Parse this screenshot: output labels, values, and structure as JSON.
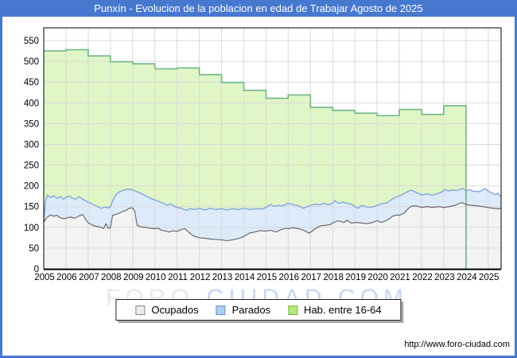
{
  "window": {
    "frame_color": "#4778cf",
    "title_text_color": "#ffffff"
  },
  "branding": {
    "url": "http://www.foro-ciudad.com",
    "watermark_gray": "FORO-",
    "watermark_blue": "CIUDAD.COM"
  },
  "chart_data": {
    "type": "area",
    "title": "Punxín - Evolucion de la poblacion en edad de Trabajar Agosto de 2025",
    "xlabel": "",
    "ylabel": "",
    "xlim": [
      2005,
      2025.58
    ],
    "ylim": [
      0,
      580
    ],
    "grid": true,
    "grid_color": "#d9d9d9",
    "legend_position": "bottom",
    "x_ticks": [
      2005,
      2006,
      2007,
      2008,
      2009,
      2010,
      2011,
      2012,
      2013,
      2014,
      2015,
      2016,
      2017,
      2018,
      2019,
      2020,
      2021,
      2022,
      2023,
      2024,
      2025
    ],
    "y_ticks": [
      0,
      50,
      100,
      150,
      200,
      250,
      300,
      350,
      400,
      450,
      500,
      550
    ],
    "legend": [
      {
        "label": "Ocupados",
        "swatch_fill": "#ececec",
        "swatch_border": "#888888"
      },
      {
        "label": "Parados",
        "swatch_fill": "#aecdf0",
        "swatch_border": "#7094c8"
      },
      {
        "label": "Hab. entre 16-64",
        "swatch_fill": "#b4e87f",
        "swatch_border": "#84b050"
      }
    ],
    "series": [
      {
        "name": "Hab. entre 16-64",
        "render": "step-area",
        "fill": "#e1f6c6",
        "stroke": "#79bb8e",
        "stroke_width": 1.8,
        "x_end": 2024,
        "points": [
          [
            2005,
            525
          ],
          [
            2006,
            528
          ],
          [
            2007,
            513
          ],
          [
            2008,
            499
          ],
          [
            2009,
            494
          ],
          [
            2010,
            482
          ],
          [
            2011,
            484
          ],
          [
            2012,
            468
          ],
          [
            2013,
            449
          ],
          [
            2014,
            430
          ],
          [
            2015,
            411
          ],
          [
            2016,
            419
          ],
          [
            2017,
            389
          ],
          [
            2018,
            382
          ],
          [
            2019,
            375
          ],
          [
            2020,
            369
          ],
          [
            2021,
            384
          ],
          [
            2022,
            372
          ],
          [
            2023,
            393
          ]
        ]
      },
      {
        "name": "Parados",
        "render": "area",
        "stacked_on_ocupados": true,
        "fill": "#dceafa",
        "stroke": "#87abdc",
        "stroke_width": 1.5,
        "points": [
          [
            2005.0,
            113
          ],
          [
            2005.08,
            162
          ],
          [
            2005.17,
            178
          ],
          [
            2005.3,
            172
          ],
          [
            2005.45,
            176
          ],
          [
            2005.6,
            170
          ],
          [
            2005.75,
            174
          ],
          [
            2005.9,
            168
          ],
          [
            2006.0,
            172
          ],
          [
            2006.15,
            176
          ],
          [
            2006.3,
            170
          ],
          [
            2006.45,
            168
          ],
          [
            2006.6,
            174
          ],
          [
            2006.75,
            168
          ],
          [
            2006.9,
            163
          ],
          [
            2007.0,
            161
          ],
          [
            2007.2,
            156
          ],
          [
            2007.4,
            150
          ],
          [
            2007.6,
            146
          ],
          [
            2007.75,
            149
          ],
          [
            2007.9,
            147
          ],
          [
            2008.0,
            150
          ],
          [
            2008.15,
            170
          ],
          [
            2008.3,
            182
          ],
          [
            2008.5,
            188
          ],
          [
            2008.7,
            191
          ],
          [
            2008.9,
            192
          ],
          [
            2009.05,
            189
          ],
          [
            2009.2,
            186
          ],
          [
            2009.4,
            181
          ],
          [
            2009.6,
            176
          ],
          [
            2009.8,
            170
          ],
          [
            2010.0,
            166
          ],
          [
            2010.2,
            162
          ],
          [
            2010.4,
            158
          ],
          [
            2010.55,
            153
          ],
          [
            2010.7,
            157
          ],
          [
            2010.85,
            152
          ],
          [
            2011.0,
            148
          ],
          [
            2011.2,
            146
          ],
          [
            2011.4,
            141
          ],
          [
            2011.6,
            145
          ],
          [
            2011.8,
            143
          ],
          [
            2012.0,
            146
          ],
          [
            2012.25,
            142
          ],
          [
            2012.5,
            146
          ],
          [
            2012.75,
            143
          ],
          [
            2013.0,
            145
          ],
          [
            2013.25,
            142
          ],
          [
            2013.5,
            145
          ],
          [
            2013.75,
            143
          ],
          [
            2014.0,
            146
          ],
          [
            2014.3,
            143
          ],
          [
            2014.6,
            145
          ],
          [
            2014.8,
            144
          ],
          [
            2015.0,
            148
          ],
          [
            2015.2,
            155
          ],
          [
            2015.35,
            151
          ],
          [
            2015.55,
            153
          ],
          [
            2015.75,
            152
          ],
          [
            2016.0,
            158
          ],
          [
            2016.2,
            155
          ],
          [
            2016.45,
            152
          ],
          [
            2016.7,
            146
          ],
          [
            2016.85,
            150
          ],
          [
            2017.0,
            153
          ],
          [
            2017.2,
            156
          ],
          [
            2017.4,
            154
          ],
          [
            2017.6,
            158
          ],
          [
            2017.8,
            155
          ],
          [
            2018.0,
            158
          ],
          [
            2018.1,
            165
          ],
          [
            2018.25,
            158
          ],
          [
            2018.45,
            161
          ],
          [
            2018.65,
            158
          ],
          [
            2018.85,
            156
          ],
          [
            2019.0,
            150
          ],
          [
            2019.15,
            146
          ],
          [
            2019.3,
            153
          ],
          [
            2019.5,
            150
          ],
          [
            2019.65,
            148
          ],
          [
            2019.85,
            150
          ],
          [
            2020.0,
            153
          ],
          [
            2020.2,
            157
          ],
          [
            2020.45,
            159
          ],
          [
            2020.7,
            169
          ],
          [
            2020.9,
            174
          ],
          [
            2021.1,
            178
          ],
          [
            2021.3,
            184
          ],
          [
            2021.5,
            190
          ],
          [
            2021.7,
            186
          ],
          [
            2021.85,
            182
          ],
          [
            2022.0,
            178
          ],
          [
            2022.25,
            181
          ],
          [
            2022.5,
            178
          ],
          [
            2022.7,
            181
          ],
          [
            2022.9,
            185
          ],
          [
            2023.05,
            191
          ],
          [
            2023.2,
            188
          ],
          [
            2023.4,
            190
          ],
          [
            2023.6,
            189
          ],
          [
            2023.85,
            194
          ],
          [
            2024.0,
            188
          ],
          [
            2024.15,
            191
          ],
          [
            2024.35,
            187
          ],
          [
            2024.55,
            186
          ],
          [
            2024.75,
            190
          ],
          [
            2024.85,
            194
          ],
          [
            2025.0,
            188
          ],
          [
            2025.15,
            183
          ],
          [
            2025.3,
            179
          ],
          [
            2025.45,
            182
          ],
          [
            2025.57,
            174
          ]
        ]
      },
      {
        "name": "Ocupados",
        "render": "area",
        "fill": "#f3f3f3",
        "stroke": "#606060",
        "stroke_width": 1.1,
        "points": [
          [
            2005.0,
            113
          ],
          [
            2005.15,
            124
          ],
          [
            2005.3,
            130
          ],
          [
            2005.45,
            127
          ],
          [
            2005.6,
            129
          ],
          [
            2005.75,
            123
          ],
          [
            2005.9,
            121
          ],
          [
            2006.0,
            122
          ],
          [
            2006.2,
            125
          ],
          [
            2006.4,
            122
          ],
          [
            2006.6,
            128
          ],
          [
            2006.75,
            131
          ],
          [
            2006.9,
            118
          ],
          [
            2007.0,
            111
          ],
          [
            2007.2,
            105
          ],
          [
            2007.4,
            102
          ],
          [
            2007.6,
            100
          ],
          [
            2007.7,
            97
          ],
          [
            2007.8,
            109
          ],
          [
            2007.9,
            98
          ],
          [
            2008.0,
            99
          ],
          [
            2008.1,
            129
          ],
          [
            2008.3,
            132
          ],
          [
            2008.5,
            137
          ],
          [
            2008.7,
            141
          ],
          [
            2008.85,
            146
          ],
          [
            2009.0,
            147
          ],
          [
            2009.1,
            138
          ],
          [
            2009.2,
            105
          ],
          [
            2009.4,
            101
          ],
          [
            2009.6,
            100
          ],
          [
            2009.8,
            98
          ],
          [
            2010.0,
            97
          ],
          [
            2010.15,
            98
          ],
          [
            2010.3,
            93
          ],
          [
            2010.5,
            91
          ],
          [
            2010.65,
            89
          ],
          [
            2010.8,
            92
          ],
          [
            2011.0,
            90
          ],
          [
            2011.2,
            95
          ],
          [
            2011.35,
            97
          ],
          [
            2011.55,
            87
          ],
          [
            2011.75,
            79
          ],
          [
            2012.0,
            75
          ],
          [
            2012.25,
            74
          ],
          [
            2012.5,
            72
          ],
          [
            2012.75,
            71
          ],
          [
            2013.0,
            70
          ],
          [
            2013.25,
            68
          ],
          [
            2013.5,
            70
          ],
          [
            2013.75,
            73
          ],
          [
            2014.0,
            78
          ],
          [
            2014.25,
            86
          ],
          [
            2014.5,
            89
          ],
          [
            2014.7,
            92
          ],
          [
            2015.0,
            91
          ],
          [
            2015.2,
            93
          ],
          [
            2015.45,
            89
          ],
          [
            2015.7,
            95
          ],
          [
            2015.9,
            98
          ],
          [
            2016.0,
            97
          ],
          [
            2016.25,
            99
          ],
          [
            2016.45,
            97
          ],
          [
            2016.7,
            93
          ],
          [
            2016.95,
            86
          ],
          [
            2017.1,
            92
          ],
          [
            2017.3,
            100
          ],
          [
            2017.5,
            104
          ],
          [
            2017.7,
            105
          ],
          [
            2017.9,
            107
          ],
          [
            2018.0,
            111
          ],
          [
            2018.25,
            116
          ],
          [
            2018.5,
            112
          ],
          [
            2018.65,
            117
          ],
          [
            2018.85,
            110
          ],
          [
            2019.0,
            112
          ],
          [
            2019.25,
            111
          ],
          [
            2019.5,
            109
          ],
          [
            2019.75,
            111
          ],
          [
            2020.0,
            116
          ],
          [
            2020.2,
            112
          ],
          [
            2020.45,
            117
          ],
          [
            2020.7,
            127
          ],
          [
            2020.9,
            130
          ],
          [
            2021.0,
            129
          ],
          [
            2021.2,
            134
          ],
          [
            2021.4,
            145
          ],
          [
            2021.55,
            151
          ],
          [
            2021.75,
            152
          ],
          [
            2022.0,
            148
          ],
          [
            2022.25,
            150
          ],
          [
            2022.5,
            148
          ],
          [
            2022.75,
            150
          ],
          [
            2023.0,
            148
          ],
          [
            2023.25,
            150
          ],
          [
            2023.5,
            153
          ],
          [
            2023.8,
            160
          ],
          [
            2024.0,
            155
          ],
          [
            2024.25,
            153
          ],
          [
            2024.5,
            152
          ],
          [
            2024.75,
            150
          ],
          [
            2025.0,
            148
          ],
          [
            2025.2,
            146
          ],
          [
            2025.45,
            145
          ],
          [
            2025.57,
            146
          ]
        ]
      }
    ]
  }
}
